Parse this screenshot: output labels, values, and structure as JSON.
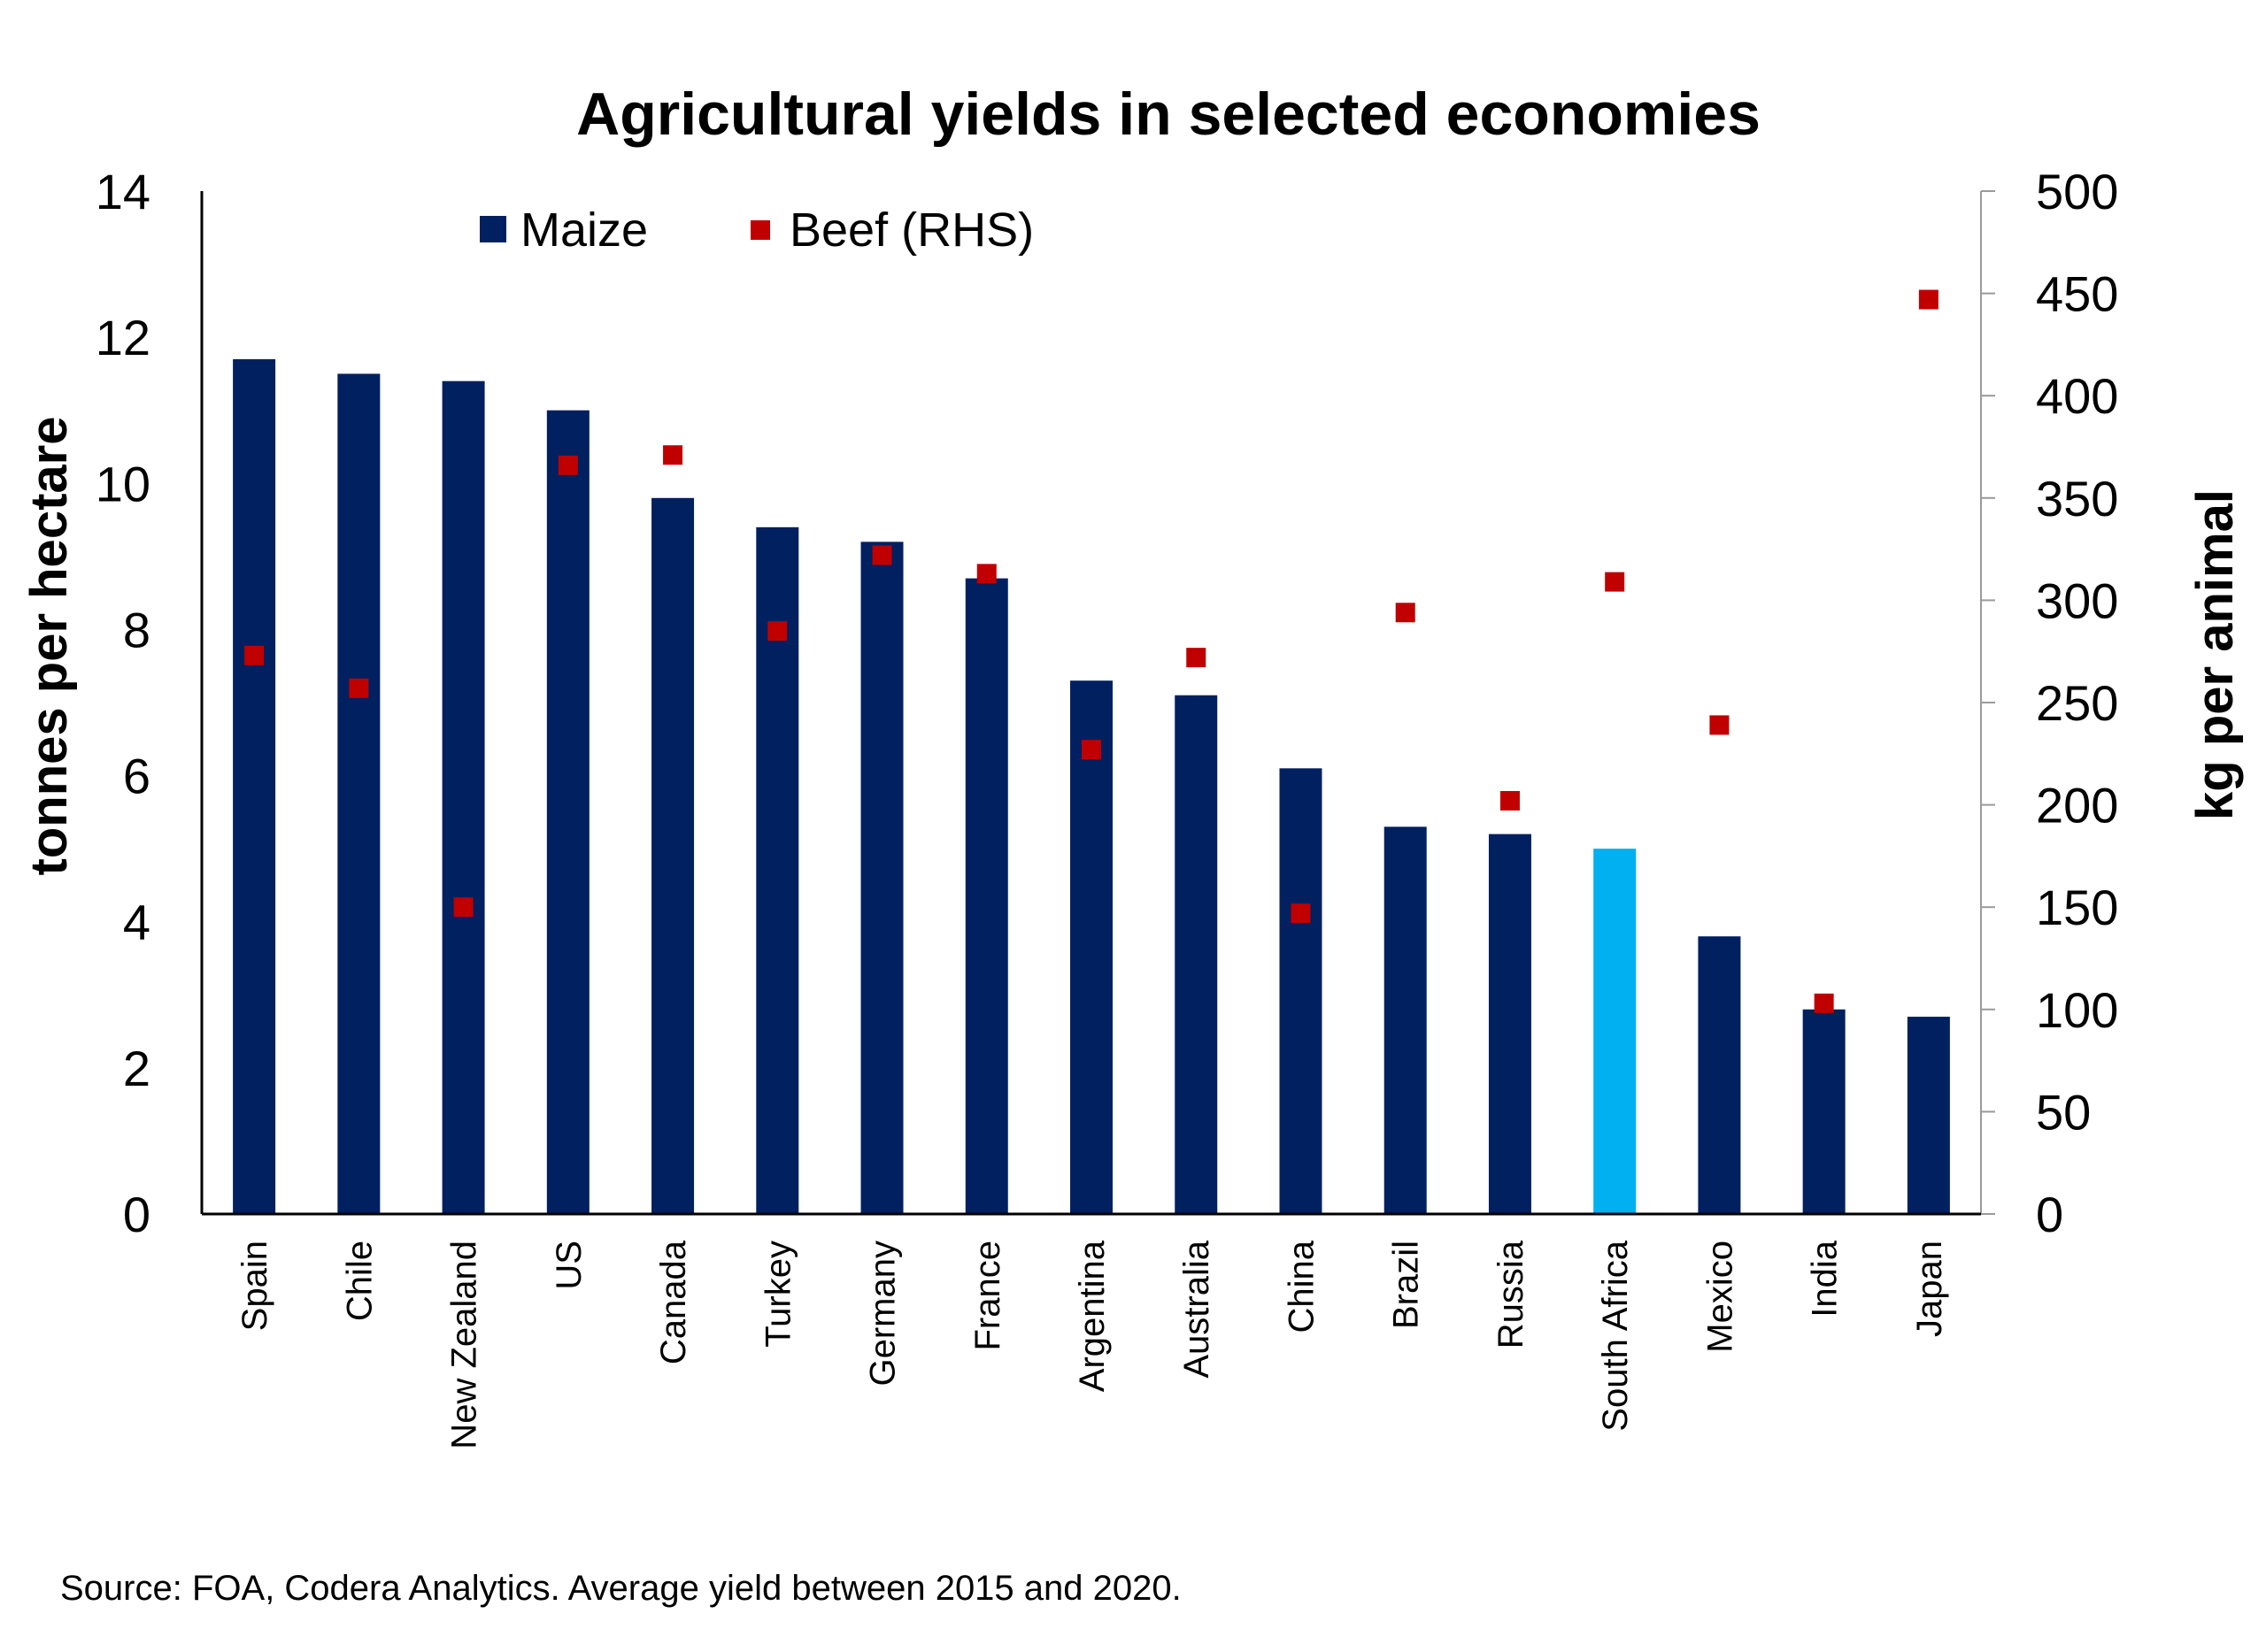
{
  "chart_data": {
    "type": "bar",
    "title": "Agricultural yields in selected economies",
    "categories": [
      "Spain",
      "Chile",
      "New Zealand",
      "US",
      "Canada",
      "Turkey",
      "Germany",
      "France",
      "Argentina",
      "Australia",
      "China",
      "Brazil",
      "Russia",
      "South Africa",
      "Mexico",
      "India",
      "Japan"
    ],
    "series": [
      {
        "name": "Maize",
        "kind": "bar",
        "axis": "left",
        "color": "#002060",
        "values": [
          11.7,
          11.5,
          11.4,
          11.0,
          9.8,
          9.4,
          9.2,
          8.7,
          7.3,
          7.1,
          6.1,
          5.3,
          5.2,
          5.0,
          3.8,
          2.8,
          2.7
        ]
      },
      {
        "name": "Beef (RHS)",
        "kind": "marker",
        "axis": "right",
        "color": "#C00000",
        "values": [
          273,
          257,
          150,
          366,
          371,
          285,
          322,
          313,
          227,
          272,
          147,
          294,
          202,
          309,
          239,
          103,
          447
        ]
      }
    ],
    "highlight": {
      "category": "South Africa",
      "color": "#00B0F0"
    },
    "ylabel": "tonnes per hectare",
    "y2label": "kg per animal",
    "ylim": [
      0,
      14
    ],
    "y2lim": [
      0,
      500
    ],
    "yticks": [
      0,
      2,
      4,
      6,
      8,
      10,
      12,
      14
    ],
    "y2ticks": [
      0,
      50,
      100,
      150,
      200,
      250,
      300,
      350,
      400,
      450,
      500
    ],
    "grid": false,
    "legend_position": "top-left"
  },
  "source_note": "Source: FOA, Codera Analytics. Average yield between 2015 and 2020."
}
